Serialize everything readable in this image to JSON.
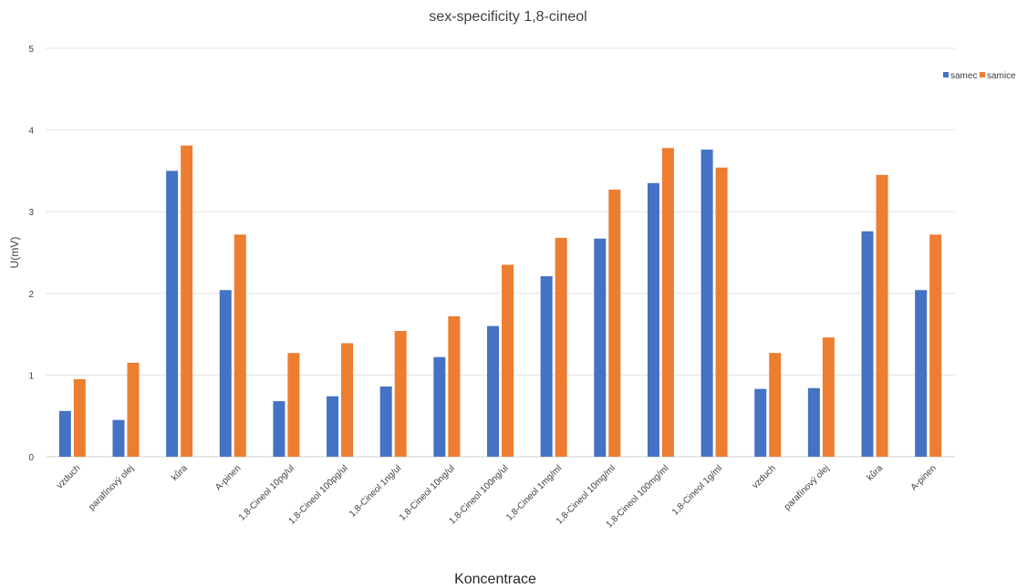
{
  "chart_data": {
    "type": "bar",
    "title": "sex-specificity 1,8-cineol",
    "xlabel": "Koncentrace",
    "ylabel": "U(mV)",
    "ylim": [
      0,
      5
    ],
    "yticks": [
      0,
      1,
      2,
      3,
      4,
      5
    ],
    "grid": true,
    "legend_position": "top-right",
    "categories": [
      "vzduch",
      "parafínový olej",
      "kůra",
      "A-pinen",
      "1,8-Cineol 10pg/ul",
      "1,8-Cineol 100pg/ul",
      "1,8-Cineol 1ng/ul",
      "1,8-Cineol 10ng/ul",
      "1,8-Cineol 100ng/ul",
      "1,8-Cineol 1mg/ml",
      "1,8-Cineol 10mg/ml",
      "1,8-Cineol 100mg/ml",
      "1,8-Cineol 1g/ml",
      "vzduch",
      "parafínový olej",
      "kůra",
      "A-pinen"
    ],
    "series": [
      {
        "name": "samec",
        "color": "#4472c4",
        "values": [
          0.56,
          0.45,
          3.5,
          2.04,
          0.68,
          0.74,
          0.86,
          1.22,
          1.6,
          2.21,
          2.67,
          3.35,
          3.76,
          0.83,
          0.84,
          2.76,
          2.04
        ]
      },
      {
        "name": "samice",
        "color": "#ed7d31",
        "values": [
          0.95,
          1.15,
          3.81,
          2.72,
          1.27,
          1.39,
          1.54,
          1.72,
          2.35,
          2.68,
          3.27,
          3.78,
          3.54,
          1.27,
          1.46,
          3.45,
          2.72
        ]
      }
    ]
  }
}
